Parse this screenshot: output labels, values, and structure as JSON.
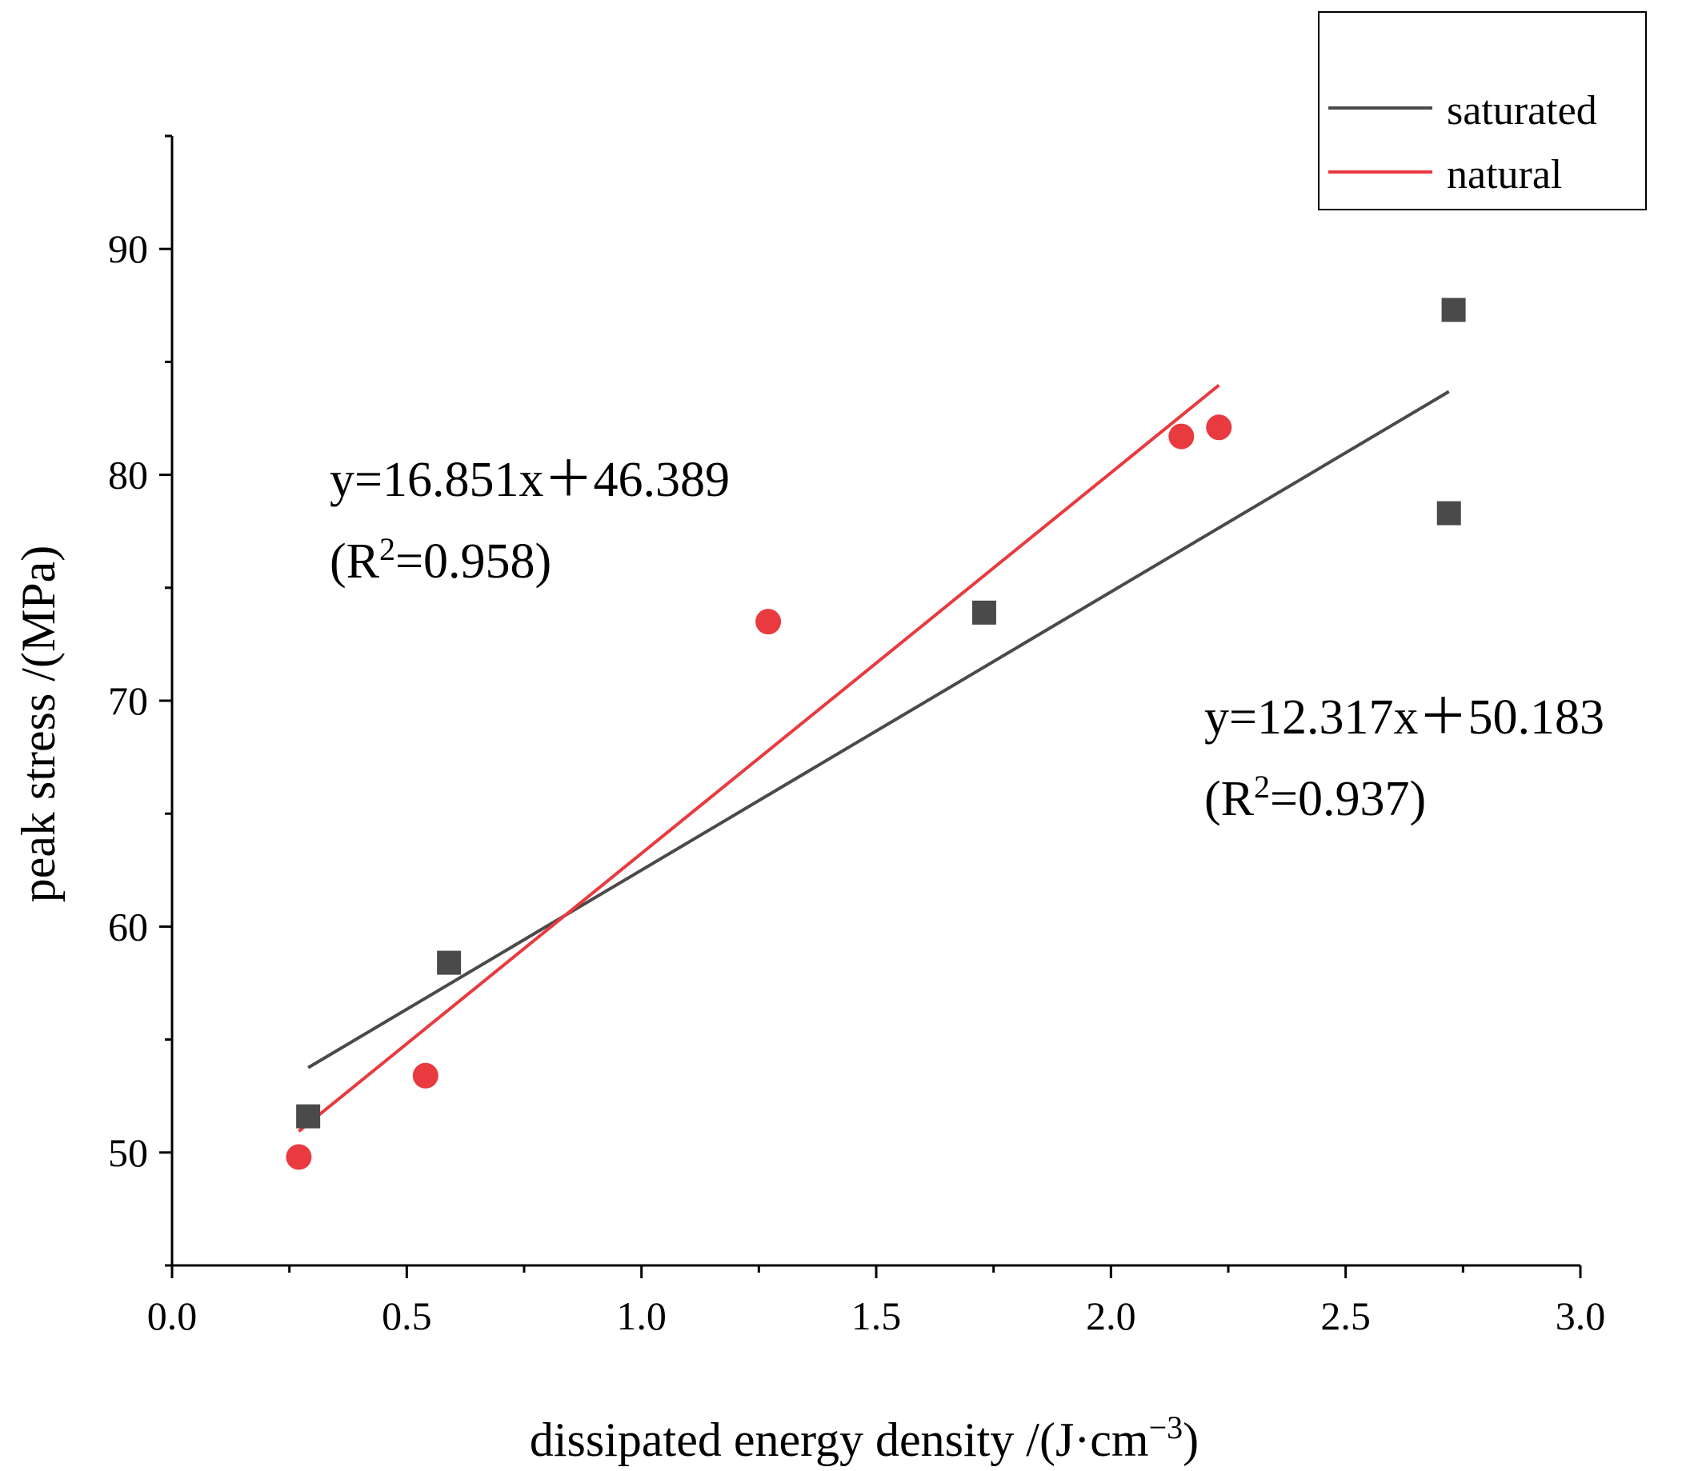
{
  "chart_data": {
    "type": "scatter",
    "title": "",
    "xlabel": "dissipated energy density /(J·cm",
    "xlabel_sup": "−3",
    "xlabel_close": ")",
    "ylabel": "peak stress /(MPa)",
    "xlim": [
      0.0,
      3.0
    ],
    "ylim": [
      45,
      95
    ],
    "x_ticks": [
      "0.0",
      "0.5",
      "1.0",
      "1.5",
      "2.0",
      "2.5",
      "3.0"
    ],
    "y_ticks": [
      "50",
      "60",
      "70",
      "80",
      "90"
    ],
    "legend_position": "top-right",
    "series": [
      {
        "name": "saturated",
        "marker": "square",
        "color": "#4a4a4a",
        "x": [
          0.29,
          0.59,
          1.73,
          2.72,
          2.73
        ],
        "y": [
          51.6,
          58.4,
          73.9,
          78.3,
          87.3
        ],
        "fit": {
          "slope": 12.317,
          "intercept": 50.183,
          "x_range": [
            0.29,
            2.72
          ],
          "equation": "y=12.317x＋50.183",
          "r2_prefix": "(R",
          "r2_sup": "2",
          "r2_suffix": "=0.937)"
        }
      },
      {
        "name": "natural",
        "marker": "circle",
        "color": "#e83a3f",
        "x": [
          0.27,
          0.54,
          1.27,
          2.15,
          2.23
        ],
        "y": [
          49.8,
          53.4,
          73.5,
          81.7,
          82.1
        ],
        "fit": {
          "slope": 16.851,
          "intercept": 46.389,
          "x_range": [
            0.27,
            2.23
          ],
          "equation": "y=16.851x＋46.389",
          "r2_prefix": "(R",
          "r2_sup": "2",
          "r2_suffix": "=0.958)"
        }
      }
    ]
  }
}
